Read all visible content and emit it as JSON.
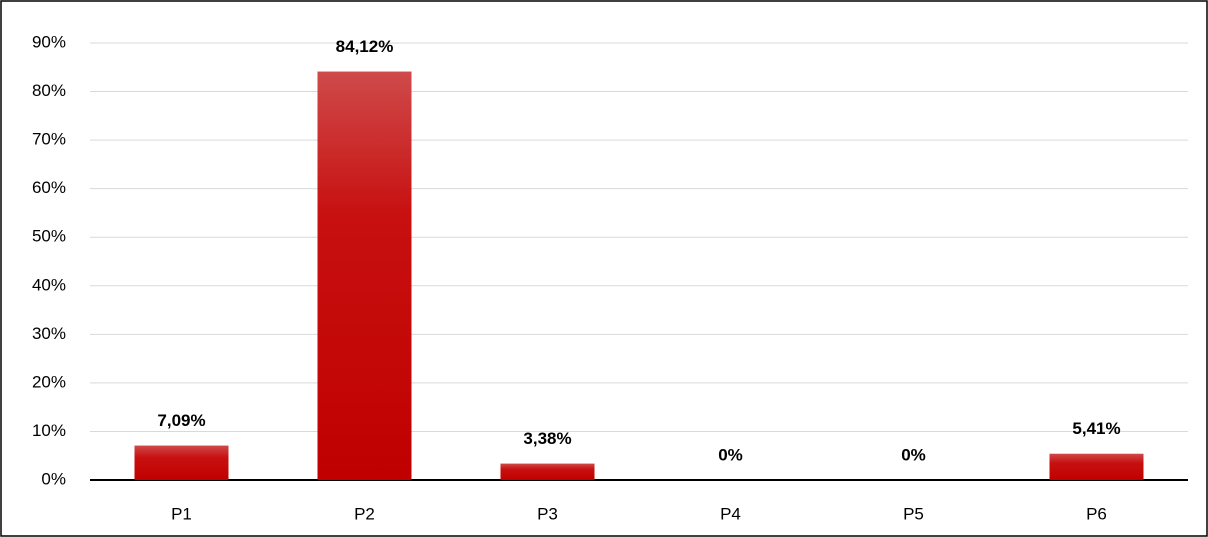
{
  "chart_data": {
    "type": "bar",
    "categories": [
      "P1",
      "P2",
      "P3",
      "P4",
      "P5",
      "P6"
    ],
    "values": [
      7.09,
      84.12,
      3.38,
      0,
      0,
      5.41
    ],
    "value_labels": [
      "7,09%",
      "84,12%",
      "3,38%",
      "0%",
      "0%",
      "5,41%"
    ],
    "color": "#c00000",
    "ylim": [
      0,
      90
    ],
    "yticks": [
      {
        "value": 0,
        "label": "0%"
      },
      {
        "value": 10,
        "label": "10%"
      },
      {
        "value": 20,
        "label": "20%"
      },
      {
        "value": 30,
        "label": "30%"
      },
      {
        "value": 40,
        "label": "40%"
      },
      {
        "value": 50,
        "label": "50%"
      },
      {
        "value": 60,
        "label": "60%"
      },
      {
        "value": 70,
        "label": "70%"
      },
      {
        "value": 80,
        "label": "80%"
      },
      {
        "value": 90,
        "label": "90%"
      }
    ],
    "grid": true
  }
}
